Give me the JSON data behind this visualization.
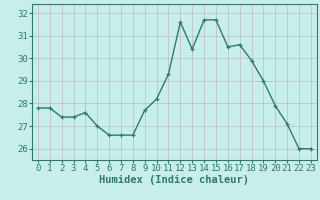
{
  "x": [
    0,
    1,
    2,
    3,
    4,
    5,
    6,
    7,
    8,
    9,
    10,
    11,
    12,
    13,
    14,
    15,
    16,
    17,
    18,
    19,
    20,
    21,
    22,
    23
  ],
  "y": [
    27.8,
    27.8,
    27.4,
    27.4,
    27.6,
    27.0,
    26.6,
    26.6,
    26.6,
    27.7,
    28.2,
    29.3,
    31.6,
    30.4,
    31.7,
    31.7,
    30.5,
    30.6,
    29.9,
    29.0,
    27.9,
    27.1,
    26.0,
    26.0
  ],
  "line_color": "#2d7a6d",
  "marker": "+",
  "marker_size": 3,
  "bg_color": "#c8eeec",
  "grid_color": "#c0b8c8",
  "xlabel": "Humidex (Indice chaleur)",
  "xlabel_fontsize": 7.5,
  "ylim": [
    25.5,
    32.4
  ],
  "yticks": [
    26,
    27,
    28,
    29,
    30,
    31,
    32
  ],
  "xticks": [
    0,
    1,
    2,
    3,
    4,
    5,
    6,
    7,
    8,
    9,
    10,
    11,
    12,
    13,
    14,
    15,
    16,
    17,
    18,
    19,
    20,
    21,
    22,
    23
  ],
  "tick_fontsize": 6.5,
  "line_width": 1.0
}
